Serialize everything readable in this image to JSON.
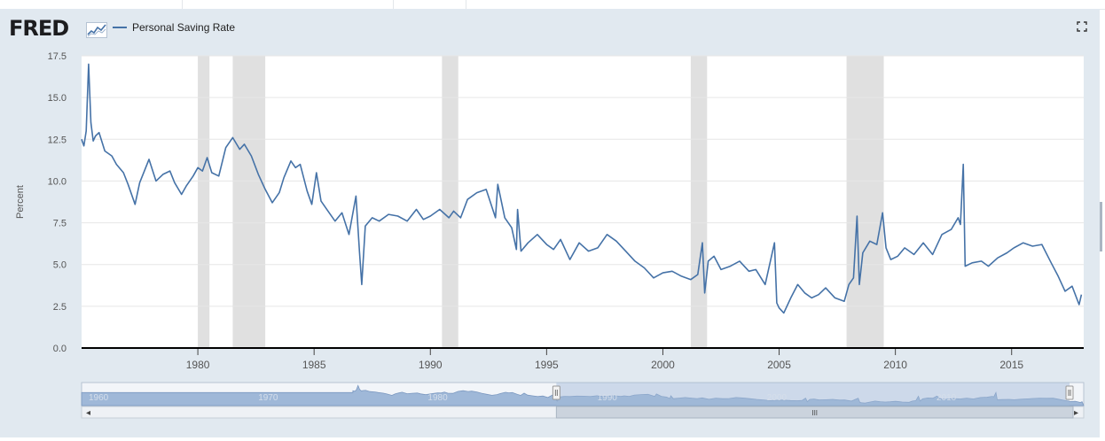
{
  "header": {
    "logo": "FRED",
    "legend_label": "Personal Saving Rate",
    "expand_icon": "fullscreen-icon"
  },
  "colors": {
    "series": "#4572a7",
    "panel_bg": "#e1e9f0",
    "recession": "#e0e0e0",
    "navigator_fill": "#bfcfe2",
    "navigator_mask": "#9fb8d8"
  },
  "chart_data": {
    "type": "line",
    "title": "",
    "ylabel": "Percent",
    "xlabel": "",
    "xlim": [
      1975.0,
      2018.1
    ],
    "ylim": [
      0,
      17.5
    ],
    "yticks": [
      "0.0",
      "2.5",
      "5.0",
      "7.5",
      "10.0",
      "12.5",
      "15.0",
      "17.5"
    ],
    "xticks": [
      "1980",
      "1985",
      "1990",
      "1995",
      "2000",
      "2005",
      "2010",
      "2015"
    ],
    "grid": true,
    "legend": "top-left",
    "recessions": [
      [
        1980.0,
        1980.5
      ],
      [
        1981.5,
        1982.9
      ],
      [
        1990.5,
        1991.2
      ],
      [
        2001.2,
        2001.9
      ],
      [
        2007.9,
        2009.5
      ]
    ],
    "series": [
      {
        "name": "Personal Saving Rate",
        "x": [
          1975.0,
          1975.1,
          1975.2,
          1975.3,
          1975.4,
          1975.5,
          1975.6,
          1975.75,
          1976.0,
          1976.3,
          1976.5,
          1976.8,
          1977.0,
          1977.3,
          1977.5,
          1977.7,
          1977.9,
          1978.2,
          1978.5,
          1978.8,
          1979.0,
          1979.3,
          1979.5,
          1979.8,
          1980.0,
          1980.2,
          1980.4,
          1980.6,
          1980.9,
          1981.2,
          1981.5,
          1981.8,
          1982.0,
          1982.3,
          1982.6,
          1982.9,
          1983.2,
          1983.5,
          1983.7,
          1984.0,
          1984.2,
          1984.4,
          1984.7,
          1984.9,
          1985.1,
          1985.3,
          1985.6,
          1985.9,
          1986.2,
          1986.5,
          1986.8,
          1986.95,
          1987.05,
          1987.2,
          1987.5,
          1987.8,
          1988.2,
          1988.6,
          1989.0,
          1989.4,
          1989.7,
          1990.0,
          1990.4,
          1990.8,
          1991.0,
          1991.3,
          1991.6,
          1992.0,
          1992.4,
          1992.8,
          1992.9,
          1993.2,
          1993.5,
          1993.7,
          1993.75,
          1993.9,
          1994.2,
          1994.6,
          1995.0,
          1995.3,
          1995.6,
          1996.0,
          1996.4,
          1996.8,
          1997.2,
          1997.6,
          1998.0,
          1998.4,
          1998.8,
          1999.2,
          1999.6,
          2000.0,
          2000.4,
          2000.8,
          2001.2,
          2001.5,
          2001.7,
          2001.8,
          2001.95,
          2002.2,
          2002.5,
          2002.9,
          2003.3,
          2003.7,
          2004.0,
          2004.4,
          2004.8,
          2004.9,
          2005.0,
          2005.2,
          2005.5,
          2005.8,
          2006.1,
          2006.4,
          2006.7,
          2007.0,
          2007.4,
          2007.8,
          2008.0,
          2008.2,
          2008.35,
          2008.45,
          2008.6,
          2008.9,
          2009.2,
          2009.45,
          2009.6,
          2009.8,
          2010.1,
          2010.4,
          2010.8,
          2011.2,
          2011.6,
          2012.0,
          2012.4,
          2012.7,
          2012.8,
          2012.92,
          2013.0,
          2013.3,
          2013.7,
          2014.0,
          2014.4,
          2014.8,
          2015.1,
          2015.5,
          2015.9,
          2016.3,
          2016.7,
          2017.0,
          2017.3,
          2017.6,
          2017.9,
          2018.0
        ],
        "values": [
          12.5,
          12.1,
          13.0,
          17.0,
          13.5,
          12.4,
          12.7,
          12.9,
          11.8,
          11.5,
          11.0,
          10.5,
          9.8,
          8.6,
          9.9,
          10.6,
          11.3,
          10.0,
          10.4,
          10.6,
          9.9,
          9.2,
          9.7,
          10.3,
          10.8,
          10.6,
          11.4,
          10.5,
          10.3,
          12.0,
          12.6,
          11.9,
          12.2,
          11.5,
          10.4,
          9.5,
          8.7,
          9.3,
          10.2,
          11.2,
          10.8,
          11.0,
          9.4,
          8.6,
          10.5,
          8.8,
          8.2,
          7.6,
          8.1,
          6.8,
          9.1,
          5.8,
          3.8,
          7.3,
          7.8,
          7.6,
          8.0,
          7.9,
          7.6,
          8.3,
          7.7,
          7.9,
          8.3,
          7.8,
          8.2,
          7.8,
          8.9,
          9.3,
          9.5,
          7.8,
          9.8,
          7.8,
          7.2,
          5.9,
          8.3,
          5.8,
          6.3,
          6.8,
          6.2,
          5.9,
          6.5,
          5.3,
          6.3,
          5.8,
          6.0,
          6.8,
          6.4,
          5.8,
          5.2,
          4.8,
          4.2,
          4.5,
          4.6,
          4.3,
          4.1,
          4.4,
          6.3,
          3.3,
          5.2,
          5.5,
          4.7,
          4.9,
          5.2,
          4.6,
          4.7,
          3.8,
          6.3,
          2.7,
          2.4,
          2.1,
          3.0,
          3.8,
          3.3,
          3.0,
          3.2,
          3.6,
          3.0,
          2.8,
          3.8,
          4.2,
          7.9,
          3.8,
          5.7,
          6.4,
          6.2,
          8.1,
          6.0,
          5.3,
          5.5,
          6.0,
          5.6,
          6.3,
          5.6,
          6.8,
          7.1,
          7.8,
          7.4,
          11.0,
          4.9,
          5.1,
          5.2,
          4.9,
          5.4,
          5.7,
          6.0,
          6.3,
          6.1,
          6.2,
          5.1,
          4.3,
          3.4,
          3.7,
          2.6,
          3.2
        ]
      }
    ],
    "navigator": {
      "range_start": 1987.0,
      "range_end": 2018.1,
      "axis_labels": [
        "1960",
        "1970",
        "1980",
        "1990",
        "2000",
        "2010"
      ],
      "scroll_thumb_label": "III",
      "left_arrow": "◂",
      "right_arrow": "▸"
    }
  }
}
